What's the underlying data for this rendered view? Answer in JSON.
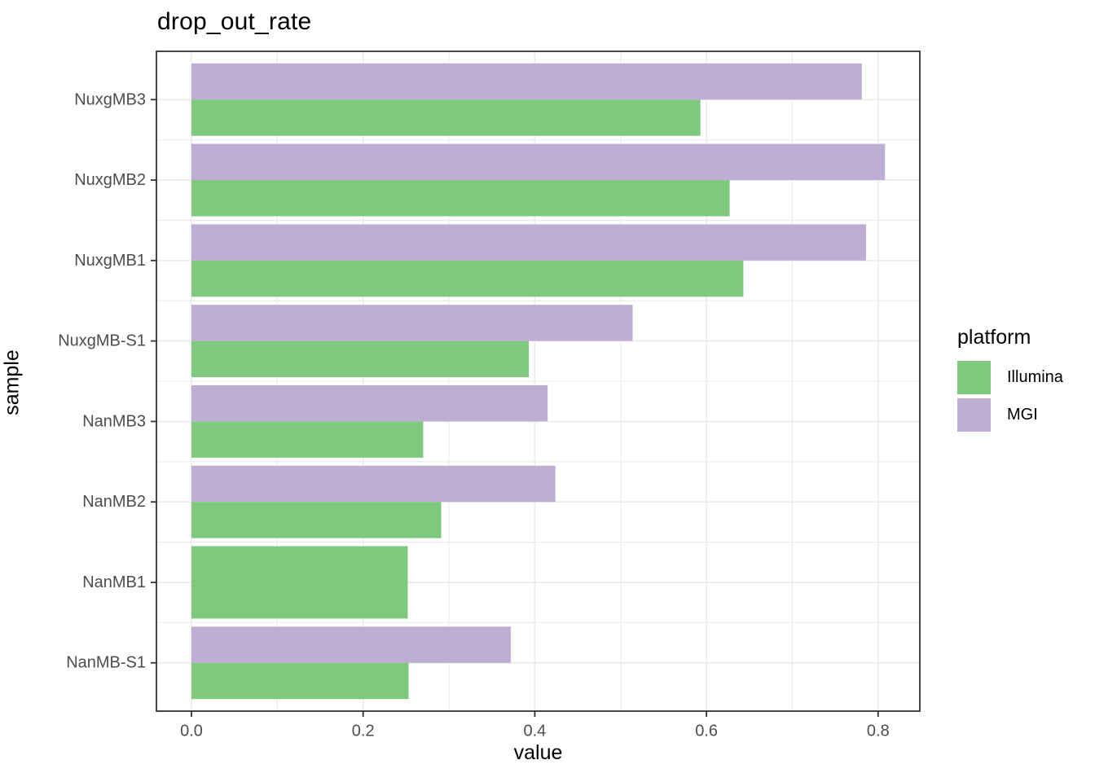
{
  "header": {
    "title": "drop_out_rate"
  },
  "chart_data": {
    "type": "bar",
    "orientation": "horizontal",
    "title": "drop_out_rate",
    "xlabel": "value",
    "ylabel": "sample",
    "categories": [
      "NuxgMB3",
      "NuxgMB2",
      "NuxgMB1",
      "NuxgMB-S1",
      "NanMB3",
      "NanMB2",
      "NanMB1",
      "NanMB-S1"
    ],
    "series": [
      {
        "name": "Illumina",
        "color": "#7FC97F",
        "values": [
          0.593,
          0.627,
          0.643,
          0.393,
          0.27,
          0.291,
          0.252,
          0.253
        ]
      },
      {
        "name": "MGI",
        "color": "#BEAED4",
        "values": [
          0.781,
          0.808,
          0.786,
          0.514,
          0.415,
          0.424,
          null,
          0.372
        ]
      }
    ],
    "x_ticks": [
      0,
      0.2,
      0.4,
      0.6,
      0.8
    ],
    "x_tick_labels": [
      "0.0",
      "0.2",
      "0.4",
      "0.6",
      "0.8"
    ],
    "x_minor_ticks": [
      0.1,
      0.3,
      0.5,
      0.7
    ],
    "xlim": [
      -0.0408,
      0.8486
    ],
    "grid": true,
    "legend_position": "right",
    "legend_title": "platform"
  },
  "legend": {
    "title": "platform",
    "items": [
      {
        "label": "Illumina",
        "color": "#7FC97F"
      },
      {
        "label": "MGI",
        "color": "#BEAED4"
      }
    ]
  },
  "colors": {
    "illumina_green": "#7FC97F",
    "mgi_purple": "#BEAED4",
    "axis_text": "#4D4D4D",
    "gridline": "#EBEBEB",
    "panel_border": "#333333",
    "background": "#FFFFFF"
  }
}
